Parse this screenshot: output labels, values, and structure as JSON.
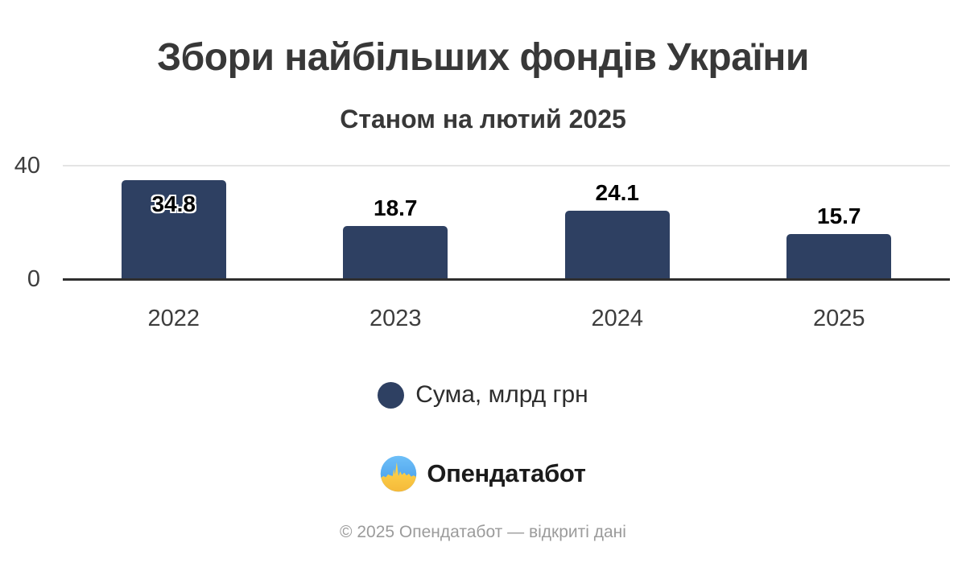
{
  "header": {
    "title": "Збори найбільших фондів України",
    "subtitle": "Станом на лютий 2025"
  },
  "chart_data": {
    "type": "bar",
    "title": "Збори найбільших фондів України",
    "subtitle": "Станом на лютий 2025",
    "categories": [
      "2022",
      "2023",
      "2024",
      "2025"
    ],
    "values": [
      34.8,
      18.7,
      24.1,
      15.7
    ],
    "value_labels": [
      "34.8",
      "18.7",
      "24.1",
      "15.7"
    ],
    "series": [
      {
        "name": "Сума, млрд грн",
        "values": [
          34.8,
          18.7,
          24.1,
          15.7
        ]
      }
    ],
    "xlabel": "",
    "ylabel": "",
    "ylim": [
      0,
      40
    ],
    "yticks": [
      0,
      40
    ],
    "grid": "single horizontal gridline at y=40, solid dark baseline at y=0",
    "legend_position": "bottom-center",
    "bar_color": "#2e4062"
  },
  "legend": {
    "label": "Сума, млрд грн",
    "marker_color": "#2e4062"
  },
  "branding": {
    "logo_text": "Опендатабот",
    "logo_icon": "circle with blue sky and yellow city-skyline pulse (Ukraine flag colors)"
  },
  "footer": {
    "text": "© 2025 Опендатабот — відкриті дані"
  },
  "colors": {
    "background": "#ffffff",
    "bar": "#2e4062",
    "title_text": "#383838",
    "tick_text": "#3d3d3d",
    "axis_line": "#2f2f2f",
    "gridline": "#e4e4e4",
    "legend_text": "#2d2d2d",
    "footer_text": "#9b9b9b",
    "logo_blue": "#54a9ef",
    "logo_yellow": "#ffd54f"
  }
}
